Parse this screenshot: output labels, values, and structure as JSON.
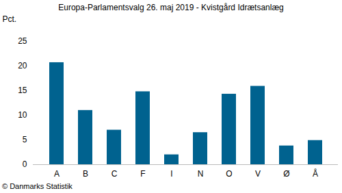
{
  "chart_data": {
    "type": "bar",
    "title": "Europa-Parlamentsvalg 26. maj 2019 - Kvistgård Idrætsanlæg",
    "ylabel": "Pct.",
    "caption": "© Danmarks Statistik",
    "categories": [
      "A",
      "B",
      "C",
      "F",
      "I",
      "N",
      "O",
      "V",
      "Ø",
      "Å"
    ],
    "values": [
      20.7,
      11.0,
      7.0,
      14.8,
      2.0,
      6.5,
      14.3,
      15.9,
      3.8,
      4.9
    ],
    "color": "#00628f",
    "ylim": [
      0,
      25
    ],
    "yticks": [
      0,
      5,
      10,
      15,
      20,
      25
    ],
    "grid": false
  }
}
